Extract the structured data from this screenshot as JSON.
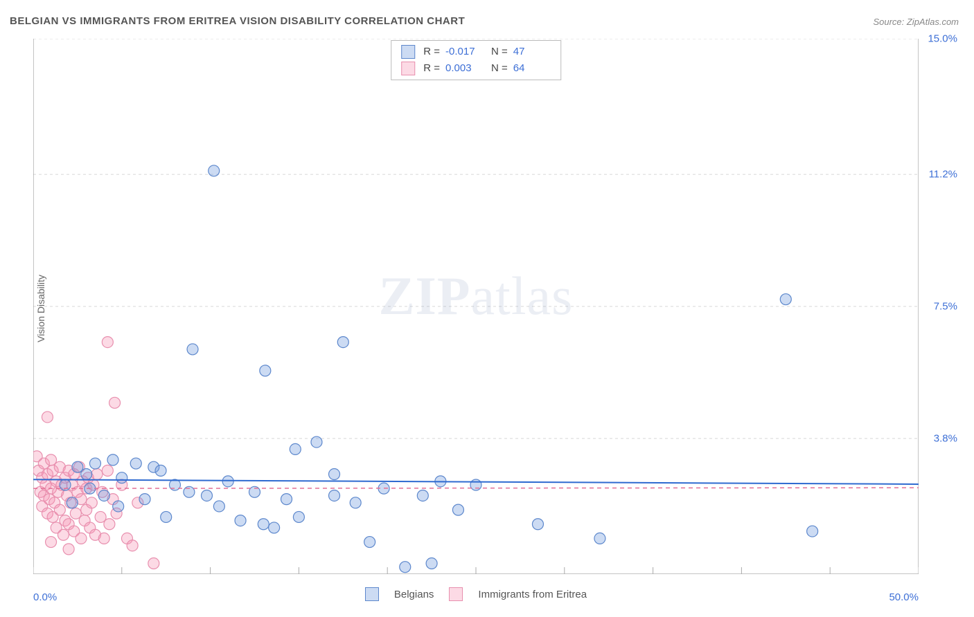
{
  "title": "BELGIAN VS IMMIGRANTS FROM ERITREA VISION DISABILITY CORRELATION CHART",
  "source": "Source: ZipAtlas.com",
  "y_axis_label": "Vision Disability",
  "watermark": {
    "bold": "ZIP",
    "light": "atlas"
  },
  "chart": {
    "type": "scatter",
    "xlim": [
      0,
      50
    ],
    "ylim": [
      0,
      15
    ],
    "x_axis": {
      "low_label": "0.0%",
      "high_label": "50.0%",
      "tick_step": 5
    },
    "y_axis": {
      "ticks": [
        {
          "value": 3.8,
          "label": "3.8%"
        },
        {
          "value": 7.5,
          "label": "7.5%"
        },
        {
          "value": 11.2,
          "label": "11.2%"
        },
        {
          "value": 15.0,
          "label": "15.0%"
        }
      ],
      "grid_color": "#d7d7d7",
      "grid_dash": "4,4"
    },
    "background_color": "#ffffff",
    "axis_color": "#888888",
    "tick_color": "#aaaaaa",
    "marker_radius": 8,
    "marker_stroke_width": 1.2,
    "label_color": "#3d6fd6",
    "label_fontsize": 15
  },
  "series": [
    {
      "id": "belgians",
      "label": "Belgians",
      "fill": "rgba(109,153,222,0.35)",
      "stroke": "#5c87cc",
      "r_stat": "-0.017",
      "n_stat": "47",
      "trend": {
        "y_start": 2.65,
        "y_end": 2.52,
        "color": "#2e6ad0",
        "width": 2,
        "dash": ""
      },
      "points": [
        [
          10.2,
          11.3
        ],
        [
          42.5,
          7.7
        ],
        [
          9.0,
          6.3
        ],
        [
          17.5,
          6.5
        ],
        [
          13.1,
          5.7
        ],
        [
          3.5,
          3.1
        ],
        [
          3.0,
          2.8
        ],
        [
          4.5,
          3.2
        ],
        [
          5.0,
          2.7
        ],
        [
          5.8,
          3.1
        ],
        [
          6.3,
          2.1
        ],
        [
          6.8,
          3.0
        ],
        [
          7.2,
          2.9
        ],
        [
          7.5,
          1.6
        ],
        [
          8.0,
          2.5
        ],
        [
          8.8,
          2.3
        ],
        [
          9.8,
          2.2
        ],
        [
          10.5,
          1.9
        ],
        [
          11.0,
          2.6
        ],
        [
          11.7,
          1.5
        ],
        [
          12.5,
          2.3
        ],
        [
          13.0,
          1.4
        ],
        [
          13.6,
          1.3
        ],
        [
          14.3,
          2.1
        ],
        [
          15.0,
          1.6
        ],
        [
          16.0,
          3.7
        ],
        [
          17.0,
          2.2
        ],
        [
          18.2,
          2.0
        ],
        [
          19.0,
          0.9
        ],
        [
          19.8,
          2.4
        ],
        [
          21.0,
          0.2
        ],
        [
          22.0,
          2.2
        ],
        [
          22.5,
          0.3
        ],
        [
          23.0,
          2.6
        ],
        [
          24.0,
          1.8
        ],
        [
          25.0,
          2.5
        ],
        [
          28.5,
          1.4
        ],
        [
          32.0,
          1.0
        ],
        [
          44.0,
          1.2
        ],
        [
          2.5,
          3.0
        ],
        [
          1.8,
          2.5
        ],
        [
          2.2,
          2.0
        ],
        [
          3.2,
          2.4
        ],
        [
          4.0,
          2.2
        ],
        [
          4.8,
          1.9
        ],
        [
          14.8,
          3.5
        ],
        [
          17.0,
          2.8
        ]
      ]
    },
    {
      "id": "eritrea",
      "label": "Immigrants from Eritrea",
      "fill": "rgba(245,150,180,0.35)",
      "stroke": "#e88fae",
      "r_stat": "0.003",
      "n_stat": "64",
      "trend": {
        "y_start": 2.4,
        "y_end": 2.42,
        "color": "#e36f95",
        "width": 1.5,
        "dash": "6,5"
      },
      "points": [
        [
          4.2,
          6.5
        ],
        [
          0.8,
          4.4
        ],
        [
          4.6,
          4.8
        ],
        [
          6.8,
          0.3
        ],
        [
          0.2,
          3.3
        ],
        [
          0.3,
          2.9
        ],
        [
          0.4,
          2.3
        ],
        [
          0.5,
          2.7
        ],
        [
          0.5,
          1.9
        ],
        [
          0.6,
          3.1
        ],
        [
          0.6,
          2.2
        ],
        [
          0.7,
          2.5
        ],
        [
          0.8,
          1.7
        ],
        [
          0.8,
          2.8
        ],
        [
          0.9,
          2.1
        ],
        [
          1.0,
          3.2
        ],
        [
          1.0,
          2.4
        ],
        [
          1.1,
          1.6
        ],
        [
          1.1,
          2.9
        ],
        [
          1.2,
          2.0
        ],
        [
          1.3,
          2.6
        ],
        [
          1.3,
          1.3
        ],
        [
          1.4,
          2.3
        ],
        [
          1.5,
          3.0
        ],
        [
          1.5,
          1.8
        ],
        [
          1.6,
          2.5
        ],
        [
          1.7,
          1.1
        ],
        [
          1.8,
          2.7
        ],
        [
          1.8,
          1.5
        ],
        [
          1.9,
          2.2
        ],
        [
          2.0,
          2.9
        ],
        [
          2.0,
          1.4
        ],
        [
          2.1,
          2.0
        ],
        [
          2.2,
          2.5
        ],
        [
          2.3,
          1.2
        ],
        [
          2.3,
          2.8
        ],
        [
          2.4,
          1.7
        ],
        [
          2.5,
          2.3
        ],
        [
          2.6,
          3.0
        ],
        [
          2.7,
          1.0
        ],
        [
          2.7,
          2.1
        ],
        [
          2.8,
          2.6
        ],
        [
          2.9,
          1.5
        ],
        [
          3.0,
          2.4
        ],
        [
          3.0,
          1.8
        ],
        [
          3.1,
          2.7
        ],
        [
          3.2,
          1.3
        ],
        [
          3.3,
          2.0
        ],
        [
          3.4,
          2.5
        ],
        [
          3.5,
          1.1
        ],
        [
          3.6,
          2.8
        ],
        [
          3.8,
          1.6
        ],
        [
          3.9,
          2.3
        ],
        [
          4.0,
          1.0
        ],
        [
          4.2,
          2.9
        ],
        [
          4.3,
          1.4
        ],
        [
          4.5,
          2.1
        ],
        [
          4.7,
          1.7
        ],
        [
          5.0,
          2.5
        ],
        [
          5.3,
          1.0
        ],
        [
          5.6,
          0.8
        ],
        [
          5.9,
          2.0
        ],
        [
          1.0,
          0.9
        ],
        [
          2.0,
          0.7
        ]
      ]
    }
  ],
  "stats_legend": {
    "r_label": "R =",
    "n_label": "N ="
  },
  "footer_series_labels": {
    "belgians": "Belgians",
    "eritrea": "Immigrants from Eritrea"
  }
}
